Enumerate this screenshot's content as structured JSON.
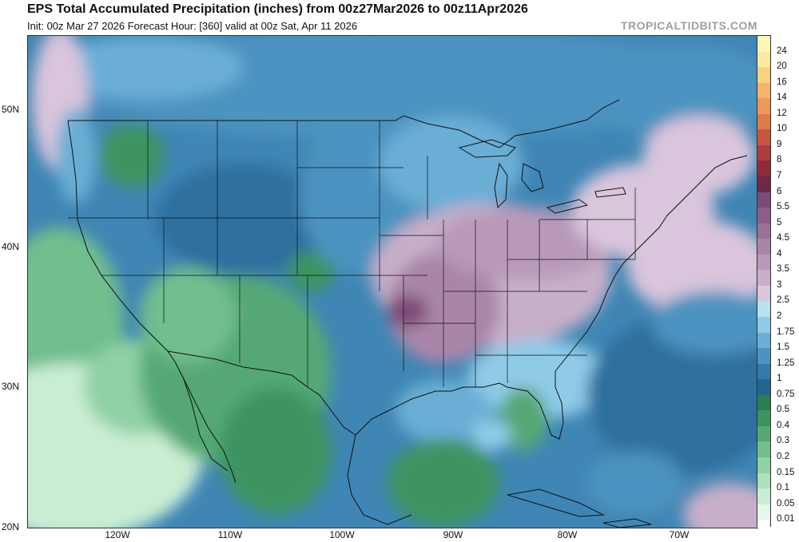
{
  "header": {
    "title": "EPS Total Accumulated Precipitation (inches) from 00z27Mar2026 to 00z11Apr2026",
    "subtitle": "Init: 00z Mar 27 2026   Forecast Hour: [360]   valid at 00z Sat, Apr 11 2026",
    "brand": "TROPICALTIDBITS.COM"
  },
  "map": {
    "latitude_labels": [
      "50N",
      "40N",
      "30N",
      "20N"
    ],
    "longitude_labels": [
      "120W",
      "110W",
      "100W",
      "90W",
      "80W",
      "70W"
    ]
  },
  "colorbar": {
    "levels": [
      {
        "label": "24",
        "color": "#fdf6b4"
      },
      {
        "label": "20",
        "color": "#fce9a0"
      },
      {
        "label": "16",
        "color": "#f9d27c"
      },
      {
        "label": "14",
        "color": "#f5b568"
      },
      {
        "label": "12",
        "color": "#ee9858"
      },
      {
        "label": "10",
        "color": "#e07b4a"
      },
      {
        "label": "9",
        "color": "#c9553f"
      },
      {
        "label": "8",
        "color": "#ad3d3d"
      },
      {
        "label": "7",
        "color": "#8f2a39"
      },
      {
        "label": "6",
        "color": "#6f2848"
      },
      {
        "label": "5.5",
        "color": "#7d4a75"
      },
      {
        "label": "5",
        "color": "#8c5d86"
      },
      {
        "label": "4.5",
        "color": "#9b7198"
      },
      {
        "label": "4",
        "color": "#a985a9"
      },
      {
        "label": "3.5",
        "color": "#b899b9"
      },
      {
        "label": "3",
        "color": "#c8afc9"
      },
      {
        "label": "2.5",
        "color": "#d9c5dc"
      },
      {
        "label": "2",
        "color": "#b8e1f2"
      },
      {
        "label": "1.75",
        "color": "#8fcbe7"
      },
      {
        "label": "1.5",
        "color": "#6aaed6"
      },
      {
        "label": "1.25",
        "color": "#4c93c0"
      },
      {
        "label": "1",
        "color": "#3479a7"
      },
      {
        "label": "0.75",
        "color": "#236490"
      },
      {
        "label": "0.5",
        "color": "#2c7d52"
      },
      {
        "label": "0.4",
        "color": "#3d9460"
      },
      {
        "label": "0.3",
        "color": "#55a874"
      },
      {
        "label": "0.2",
        "color": "#72be8d"
      },
      {
        "label": "0.15",
        "color": "#90d1a5"
      },
      {
        "label": "0.1",
        "color": "#aee0bc"
      },
      {
        "label": "0.05",
        "color": "#c9edd3"
      },
      {
        "label": "0.01",
        "color": "#e4f7ea"
      }
    ]
  }
}
